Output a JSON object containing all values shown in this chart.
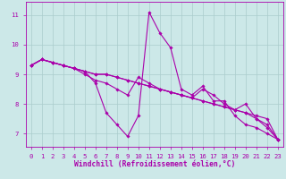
{
  "x": [
    0,
    1,
    2,
    3,
    4,
    5,
    6,
    7,
    8,
    9,
    10,
    11,
    12,
    13,
    14,
    15,
    16,
    17,
    18,
    19,
    20,
    21,
    22,
    23
  ],
  "series": [
    [
      9.3,
      9.5,
      9.4,
      9.3,
      9.2,
      9.1,
      8.7,
      7.7,
      7.3,
      6.9,
      7.6,
      11.1,
      10.4,
      9.9,
      8.5,
      8.3,
      8.6,
      8.1,
      8.1,
      7.6,
      7.3,
      7.2,
      7.0,
      6.8
    ],
    [
      9.3,
      9.5,
      9.4,
      9.3,
      9.2,
      9.1,
      9.0,
      9.0,
      8.9,
      8.8,
      8.7,
      8.6,
      8.5,
      8.4,
      8.3,
      8.2,
      8.1,
      8.0,
      7.9,
      7.8,
      7.7,
      7.6,
      7.5,
      6.8
    ],
    [
      9.3,
      9.5,
      9.4,
      9.3,
      9.2,
      9.1,
      9.0,
      9.0,
      8.9,
      8.8,
      8.7,
      8.6,
      8.5,
      8.4,
      8.3,
      8.2,
      8.1,
      8.0,
      7.9,
      7.8,
      7.7,
      7.5,
      7.3,
      6.8
    ],
    [
      9.3,
      9.5,
      9.4,
      9.3,
      9.2,
      9.0,
      8.8,
      8.7,
      8.5,
      8.3,
      8.9,
      8.7,
      8.5,
      8.4,
      8.3,
      8.2,
      8.5,
      8.3,
      8.0,
      7.8,
      8.0,
      7.5,
      7.2,
      6.8
    ]
  ],
  "line_color": "#aa00aa",
  "marker": "D",
  "markersize": 1.8,
  "linewidth": 0.8,
  "bg_color": "#cce8e8",
  "grid_color": "#aacccc",
  "ylabel_ticks": [
    7,
    8,
    9,
    10,
    11
  ],
  "xlim": [
    -0.5,
    23.5
  ],
  "ylim": [
    6.55,
    11.45
  ],
  "xlabel": "Windchill (Refroidissement éolien,°C)",
  "xtick_labels": [
    "0",
    "1",
    "2",
    "3",
    "4",
    "5",
    "6",
    "7",
    "8",
    "9",
    "10",
    "11",
    "12",
    "13",
    "14",
    "15",
    "16",
    "17",
    "18",
    "19",
    "20",
    "21",
    "22",
    "23"
  ],
  "tick_fontsize": 5.2,
  "xlabel_fontsize": 5.8
}
